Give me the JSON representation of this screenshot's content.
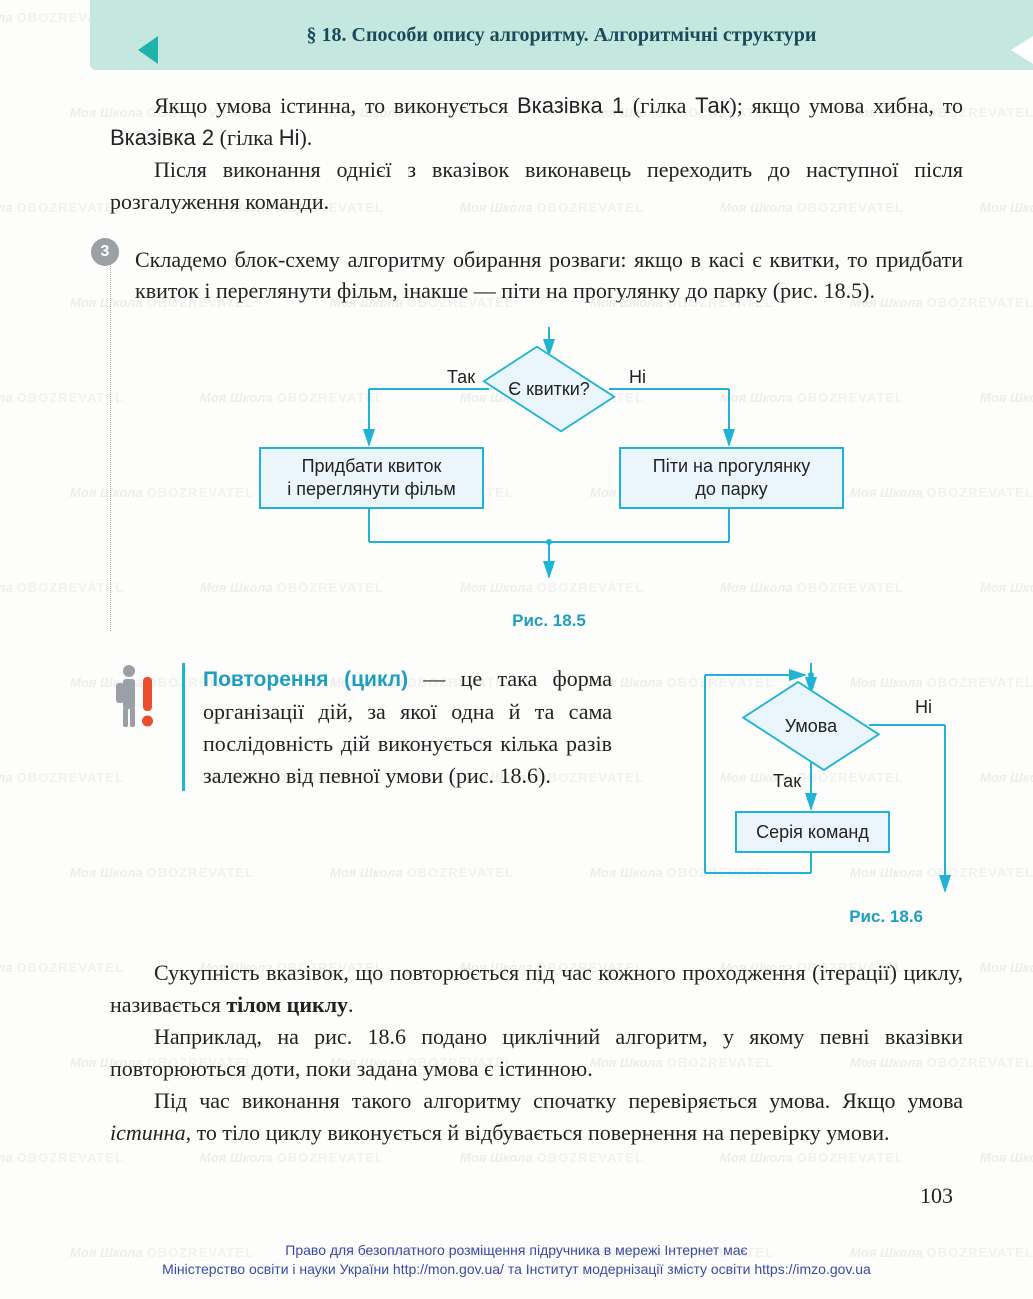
{
  "header": {
    "title": "§ 18. Способи опису алгоритму. Алгоритмічні структури"
  },
  "watermark": {
    "part1": "Моя Школа",
    "part2": "OBOZREVATEL"
  },
  "intro": {
    "p1_a": "Якщо умова істинна, то виконується ",
    "p1_b": "Вказівка 1",
    "p1_c": " (гілка ",
    "p1_d": "Так",
    "p1_e": "); якщо умова хибна, то ",
    "p1_f": "Вказівка 2",
    "p1_g": " (гілка ",
    "p1_h": "Ні",
    "p1_i": ").",
    "p2": "Після виконання однієї з вказівок виконавець переходить до наступної після розгалуження команди."
  },
  "callout": {
    "badge": "3",
    "text": "Складемо блок-схему алгоритму обирання розваги: якщо в касі є квитки, то придбати квиток і переглянути фільм, інакше — піти на прогулянку до парку (рис. 18.5)."
  },
  "flowchart1": {
    "type": "flowchart",
    "caption": "Рис. 18.5",
    "diamond": "Є квитки?",
    "yes_label": "Так",
    "no_label": "Ні",
    "left_box": "Придбати квиток\nі переглянути фільм",
    "right_box": "Піти на прогулянку\nдо парку",
    "colors": {
      "stroke": "#1fb3d6",
      "fill": "#eaf6fb",
      "arrow": "#1fb3d6"
    }
  },
  "definition": {
    "term": "Повторення (цикл)",
    "rest": " — це така форма організації дій, за якої одна й та сама послідовність дій виконується кілька разів залежно від певної умови (рис. 18.6)."
  },
  "flowchart2": {
    "type": "flowchart",
    "caption": "Рис. 18.6",
    "diamond": "Умова",
    "yes_label": "Так",
    "no_label": "Ні",
    "box": "Серія команд",
    "colors": {
      "stroke": "#1fb3d6",
      "fill": "#eaf6fb",
      "arrow": "#1fb3d6"
    }
  },
  "tail": {
    "p1_a": "Сукупність вказівок, що повторюється під час кожного проходження (ітерації) циклу, називається ",
    "p1_b": "тілом циклу",
    "p1_c": ".",
    "p2": "Наприклад, на рис. 18.6 подано циклічний алгоритм, у якому певні вказівки повторюються доти, поки задана умова є істинною.",
    "p3_a": "Під час виконання такого алгоритму спочатку перевіряється умова. Якщо умова ",
    "p3_b": "істинна",
    "p3_c": ", то тіло циклу виконується й відбувається повернення на перевірку умови."
  },
  "page_number": "103",
  "footer": {
    "l1": "Право для безоплатного розміщення підручника в мережі Інтернет має",
    "l2": "Міністерство освіти і науки України http://mon.gov.ua/ та Інститут модернізації змісту освіти https://imzo.gov.ua"
  }
}
